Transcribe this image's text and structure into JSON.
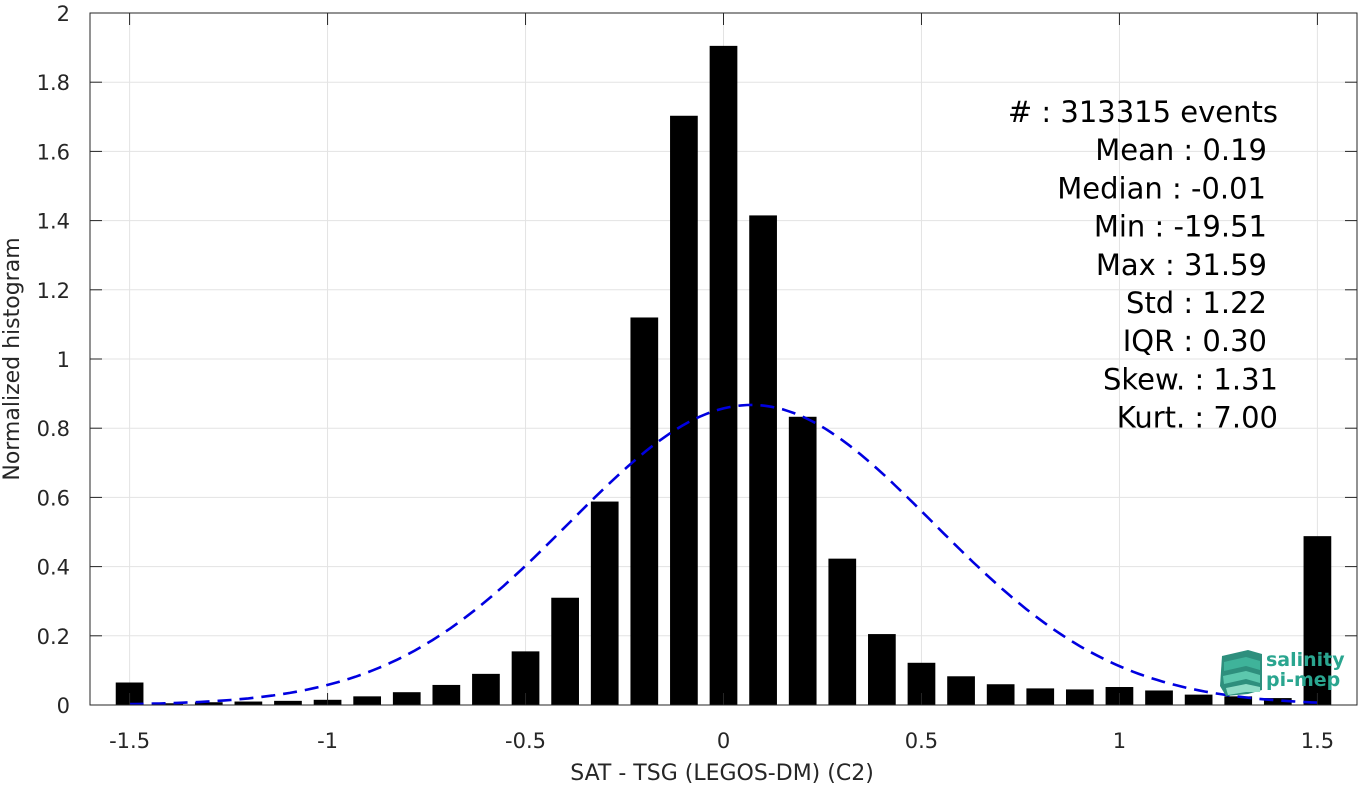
{
  "chart_data": {
    "type": "bar",
    "xlabel": "SAT - TSG (LEGOS-DM) (C2)",
    "ylabel": "Normalized histogram",
    "xlim": [
      -1.6,
      1.6
    ],
    "ylim": [
      0,
      2
    ],
    "xticks": [
      -1.5,
      -1,
      -0.5,
      0,
      0.5,
      1,
      1.5
    ],
    "xtick_labels": [
      "-1.5",
      "-1",
      "-0.5",
      "0",
      "0.5",
      "1",
      "1.5"
    ],
    "yticks": [
      0,
      0.2,
      0.4,
      0.6,
      0.8,
      1,
      1.2,
      1.4,
      1.6,
      1.8,
      2
    ],
    "ytick_labels": [
      "0",
      "0.2",
      "0.4",
      "0.6",
      "0.8",
      "1",
      "1.2",
      "1.4",
      "1.6",
      "1.8",
      "2"
    ],
    "grid": true,
    "bar_color": "#000000",
    "bin_width": 0.1,
    "bar_width_fraction": 0.7,
    "x": [
      -1.5,
      -1.4,
      -1.3,
      -1.2,
      -1.1,
      -1.0,
      -0.9,
      -0.8,
      -0.7,
      -0.6,
      -0.5,
      -0.4,
      -0.3,
      -0.2,
      -0.1,
      0.0,
      0.1,
      0.2,
      0.3,
      0.4,
      0.5,
      0.6,
      0.7,
      0.8,
      0.9,
      1.0,
      1.1,
      1.2,
      1.3,
      1.4,
      1.5
    ],
    "values": [
      0.065,
      0.005,
      0.008,
      0.01,
      0.012,
      0.015,
      0.025,
      0.037,
      0.058,
      0.09,
      0.155,
      0.31,
      0.588,
      1.12,
      1.703,
      1.905,
      1.415,
      0.833,
      0.423,
      0.205,
      0.122,
      0.083,
      0.06,
      0.048,
      0.045,
      0.052,
      0.042,
      0.03,
      0.025,
      0.02,
      0.488
    ],
    "fit": {
      "type": "normal",
      "mean": 0.07,
      "std": 0.46,
      "color": "#0000e0",
      "style": "dashed",
      "x_range": [
        -1.5,
        1.5
      ]
    }
  },
  "stats": [
    {
      "label": "#  : 313315 events"
    },
    {
      "label": "Mean : 0.19"
    },
    {
      "label": "Median : -0.01"
    },
    {
      "label": "Min : -19.51"
    },
    {
      "label": "Max : 31.59"
    },
    {
      "label": "Std : 1.22"
    },
    {
      "label": "IQR : 0.30"
    },
    {
      "label": "Skew. : 1.31"
    },
    {
      "label": "Kurt. : 7.00"
    }
  ],
  "logo": {
    "line1": "salinity",
    "line2": "pi-mep",
    "color": "#2aa58f"
  }
}
